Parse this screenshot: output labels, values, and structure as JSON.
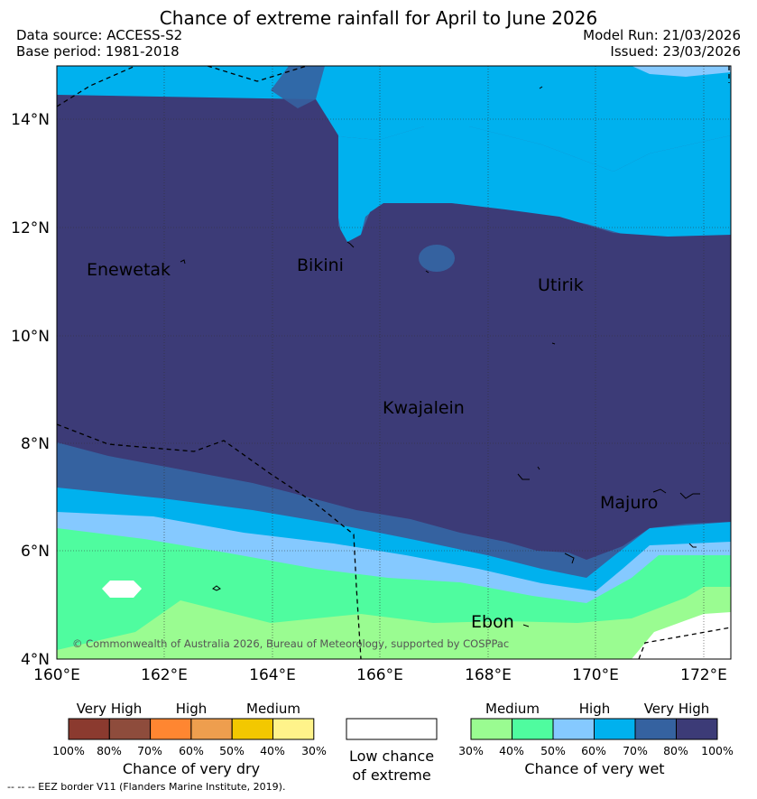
{
  "title": "Chance of extreme rainfall for April to June 2026",
  "header": {
    "data_source": "Data source: ACCESS-S2",
    "base_period": "Base period: 1981-2018",
    "model_run": "Model Run: 21/03/2026",
    "issued": "Issued: 23/03/2026"
  },
  "map": {
    "lat_labels": [
      "14°N",
      "12°N",
      "10°N",
      "8°N",
      "6°N",
      "4°N"
    ],
    "lon_labels": [
      "160°E",
      "162°E",
      "164°E",
      "166°E",
      "168°E",
      "170°E",
      "172°E"
    ],
    "places": {
      "enewetak": "Enewetak",
      "bikini": "Bikini",
      "utirik": "Utirik",
      "kwajalein": "Kwajalein",
      "majuro": "Majuro",
      "ebon": "Ebon"
    },
    "copyright": "© Commonwealth of Australia 2026, Bureau of Meteorology, supported by COSPPac"
  },
  "legend": {
    "dry": {
      "categories": [
        "Very High",
        "High",
        "Medium"
      ],
      "ticks": [
        "100%",
        "80%",
        "70%",
        "60%",
        "50%",
        "40%",
        "30%"
      ],
      "colors": [
        "#8B3A2F",
        "#8E4C3C",
        "#FF8631",
        "#EE9E4E",
        "#F3C800",
        "#FFF38A"
      ],
      "title": "Chance of very dry"
    },
    "low": {
      "line1": "Low chance",
      "line2": "of extreme"
    },
    "wet": {
      "categories": [
        "Medium",
        "High",
        "Very High"
      ],
      "ticks": [
        "30%",
        "40%",
        "50%",
        "60%",
        "70%",
        "80%",
        "100%"
      ],
      "colors": [
        "#9AFC91",
        "#4FFC9F",
        "#85C9FF",
        "#00B1EE",
        "#3562A0",
        "#3C3B77"
      ],
      "title": "Chance of very wet"
    }
  },
  "footnote": "--  --  -- EEZ border V11 (Flanders Marine Institute, 2019)."
}
